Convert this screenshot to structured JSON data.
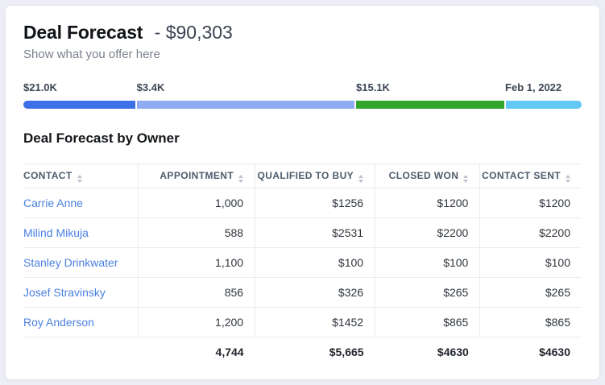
{
  "header": {
    "title": "Deal Forecast",
    "separator": "-",
    "amount": "$90,303",
    "subtitle": "Show what you offer here"
  },
  "funnel": {
    "segments": [
      {
        "label": "$21.0K",
        "color": "#3d6fe6",
        "width_pct": 20.3
      },
      {
        "label": "$3.4K",
        "color": "#8fabf2",
        "width_pct": 39.3
      },
      {
        "label": "$15.1K",
        "color": "#31a52c",
        "width_pct": 26.7
      },
      {
        "label": "Feb 1, 2022",
        "color": "#62c8f4",
        "width_pct": 13.7
      }
    ]
  },
  "table": {
    "title": "Deal Forecast by Owner",
    "columns": [
      "CONTACT",
      "APPOINTMENT",
      "QUALIFIED TO BUY",
      "CLOSED WON",
      "CONTACT SENT"
    ],
    "rows": [
      {
        "contact": "Carrie Anne",
        "appointment": "1,000",
        "qualified_to_buy": "$1256",
        "closed_won": "$1200",
        "contact_sent": "$1200"
      },
      {
        "contact": "Milind Mikuja",
        "appointment": "588",
        "qualified_to_buy": "$2531",
        "closed_won": "$2200",
        "contact_sent": "$2200"
      },
      {
        "contact": "Stanley Drinkwater",
        "appointment": "1,100",
        "qualified_to_buy": "$100",
        "closed_won": "$100",
        "contact_sent": "$100"
      },
      {
        "contact": "Josef Stravinsky",
        "appointment": "856",
        "qualified_to_buy": "$326",
        "closed_won": "$265",
        "contact_sent": "$265"
      },
      {
        "contact": "Roy Anderson",
        "appointment": "1,200",
        "qualified_to_buy": "$1452",
        "closed_won": "$865",
        "contact_sent": "$865"
      }
    ],
    "totals": {
      "appointment": "4,744",
      "qualified_to_buy": "$5,665",
      "closed_won": "$4630",
      "contact_sent": "$4630"
    }
  }
}
